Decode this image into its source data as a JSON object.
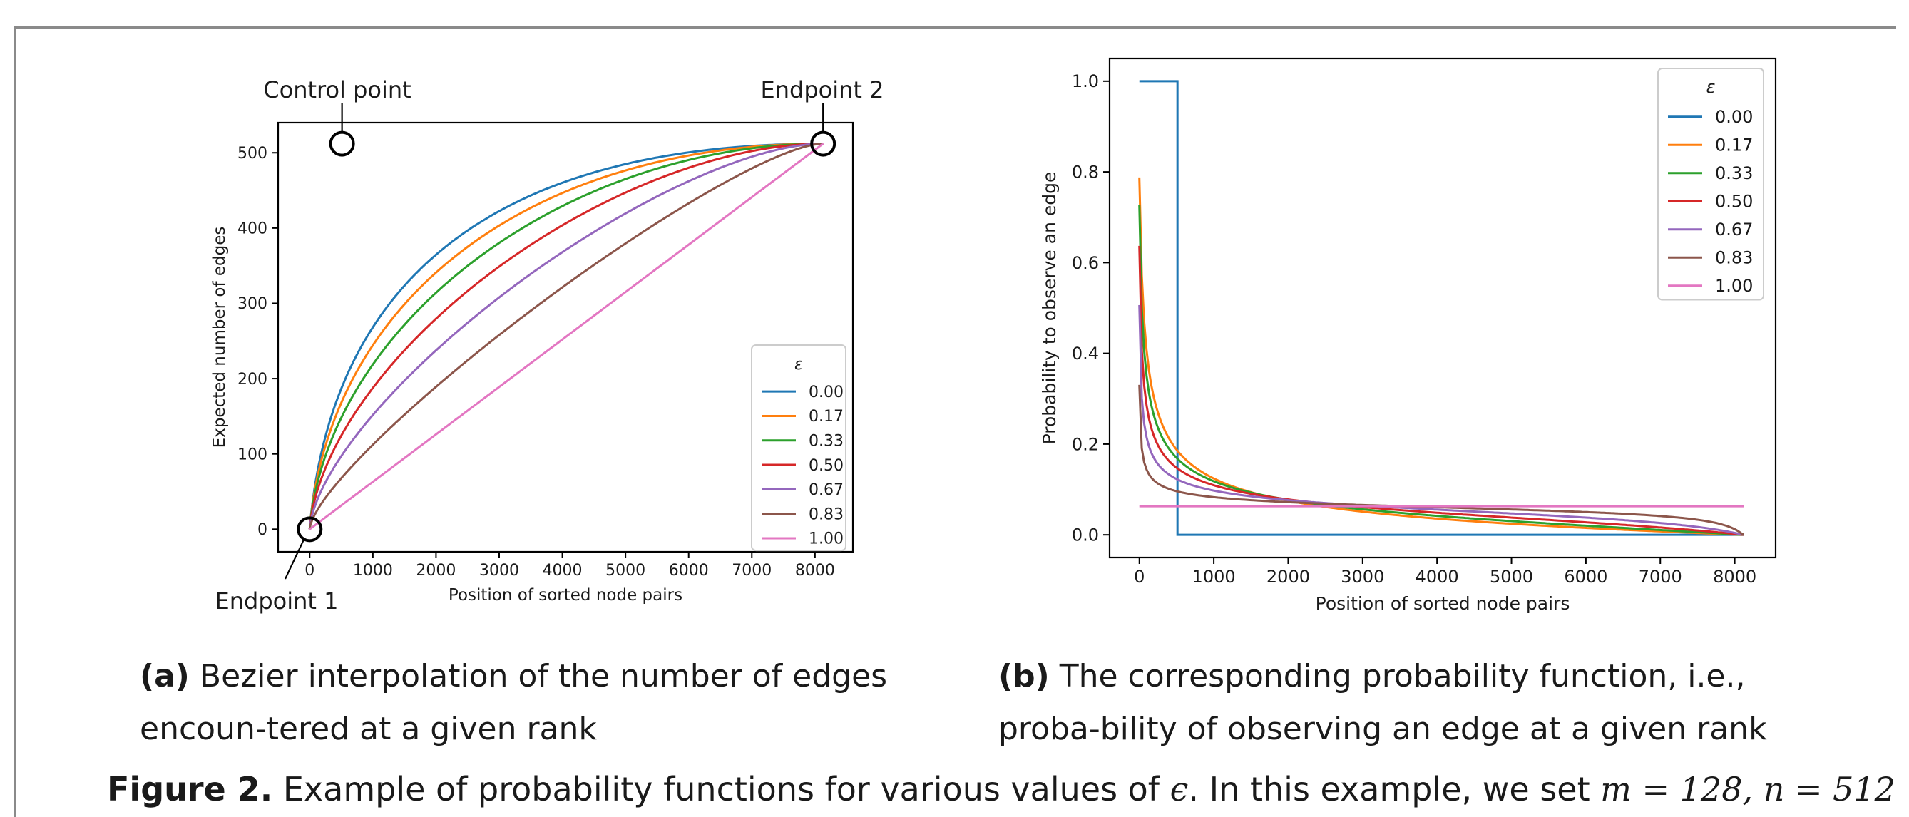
{
  "chart_data": [
    {
      "type": "line",
      "xlabel": "Position of sorted node pairs",
      "ylabel": "Expected number of edges",
      "xlim": [
        -500,
        8600
      ],
      "ylim": [
        -30,
        540
      ],
      "xticks": [
        "0",
        "1000",
        "2000",
        "3000",
        "4000",
        "5000",
        "6000",
        "7000",
        "8000"
      ],
      "yticks": [
        "0",
        "100",
        "200",
        "300",
        "400",
        "500"
      ],
      "legend_title": "ε",
      "legend_position": "lower right",
      "annotations": [
        "Control point",
        "Endpoint 2",
        "Endpoint 1"
      ],
      "control_point": [
        512,
        512
      ],
      "endpoint_1": [
        0,
        0
      ],
      "endpoint_2": [
        8128,
        512
      ],
      "series": [
        {
          "name": "0.00",
          "color": "#1f77b4"
        },
        {
          "name": "0.17",
          "color": "#ff7f0e"
        },
        {
          "name": "0.33",
          "color": "#2ca02c"
        },
        {
          "name": "0.50",
          "color": "#d62728"
        },
        {
          "name": "0.67",
          "color": "#9467bd"
        },
        {
          "name": "0.83",
          "color": "#8c564b"
        },
        {
          "name": "1.00",
          "color": "#e377c2"
        }
      ],
      "epsilon_values": [
        0.0,
        0.17,
        0.33,
        0.5,
        0.67,
        0.83,
        1.0
      ]
    },
    {
      "type": "line",
      "xlabel": "Position of sorted node pairs",
      "ylabel": "Probability to observe an edge",
      "xlim": [
        -400,
        8550
      ],
      "ylim": [
        -0.05,
        1.05
      ],
      "xticks": [
        "0",
        "1000",
        "2000",
        "3000",
        "4000",
        "5000",
        "6000",
        "7000",
        "8000"
      ],
      "yticks": [
        "0.0",
        "0.2",
        "0.4",
        "0.6",
        "0.8",
        "1.0"
      ],
      "legend_title": "ε",
      "legend_position": "upper right",
      "series": [
        {
          "name": "0.00",
          "color": "#1f77b4"
        },
        {
          "name": "0.17",
          "color": "#ff7f0e"
        },
        {
          "name": "0.33",
          "color": "#2ca02c"
        },
        {
          "name": "0.50",
          "color": "#d62728"
        },
        {
          "name": "0.67",
          "color": "#9467bd"
        },
        {
          "name": "0.83",
          "color": "#8c564b"
        },
        {
          "name": "1.00",
          "color": "#e377c2"
        }
      ],
      "epsilon_values": [
        0.0,
        0.17,
        0.33,
        0.5,
        0.67,
        0.83,
        1.0
      ]
    }
  ],
  "captions": {
    "a_label": "(a)",
    "a_text": " Bezier interpolation of the number of edges encoun-tered at a given rank",
    "b_label": "(b)",
    "b_text": " The corresponding probability function, i.e., proba-bility of observing an edge at a given rank",
    "main_label": "Figure 2.",
    "main_text_1": " Example of probability functions for various values of ",
    "main_epsilon": "ϵ",
    "main_text_2": ". In this example, we set ",
    "main_math": "m = 128, n = 512"
  }
}
